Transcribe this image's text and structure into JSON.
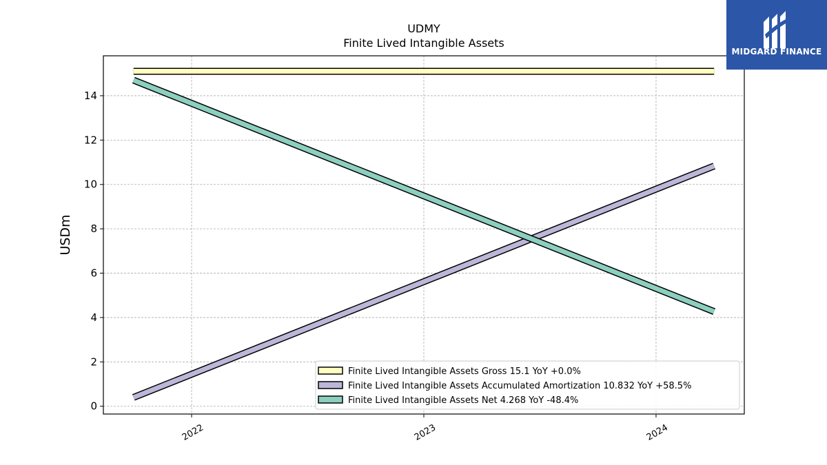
{
  "chart_data": {
    "type": "line",
    "title": "UDMY",
    "subtitle": "Finite Lived Intangible Assets",
    "ylabel": "USDm",
    "xlabel": "",
    "x": [
      2021.75,
      2024.25
    ],
    "x_ticks": [
      2022,
      2023,
      2024
    ],
    "x_tick_labels": [
      "2022",
      "2023",
      "2024"
    ],
    "xlim": [
      2021.62,
      2024.38
    ],
    "ylim": [
      -0.35,
      15.8
    ],
    "y_ticks": [
      0,
      2,
      4,
      6,
      8,
      10,
      12,
      14
    ],
    "y_tick_labels": [
      "0",
      "2",
      "4",
      "6",
      "8",
      "10",
      "12",
      "14"
    ],
    "grid": true,
    "legend_position": "lower-right",
    "series": [
      {
        "name": "Finite Lived Intangible Assets Gross  15.1 YoY +0.0%",
        "values": [
          15.1,
          15.1
        ],
        "color": "#ffffbf"
      },
      {
        "name": "Finite Lived Intangible Assets Accumulated Amortization  10.832 YoY +58.5%",
        "values": [
          0.4,
          10.832
        ],
        "color": "#bcb6d8"
      },
      {
        "name": "Finite Lived Intangible Assets Net  4.268 YoY -48.4%",
        "values": [
          14.7,
          4.268
        ],
        "color": "#8ccfbf"
      }
    ]
  },
  "logo": {
    "text": "MIDGARD FINANCE",
    "background": "#2c57a8"
  }
}
